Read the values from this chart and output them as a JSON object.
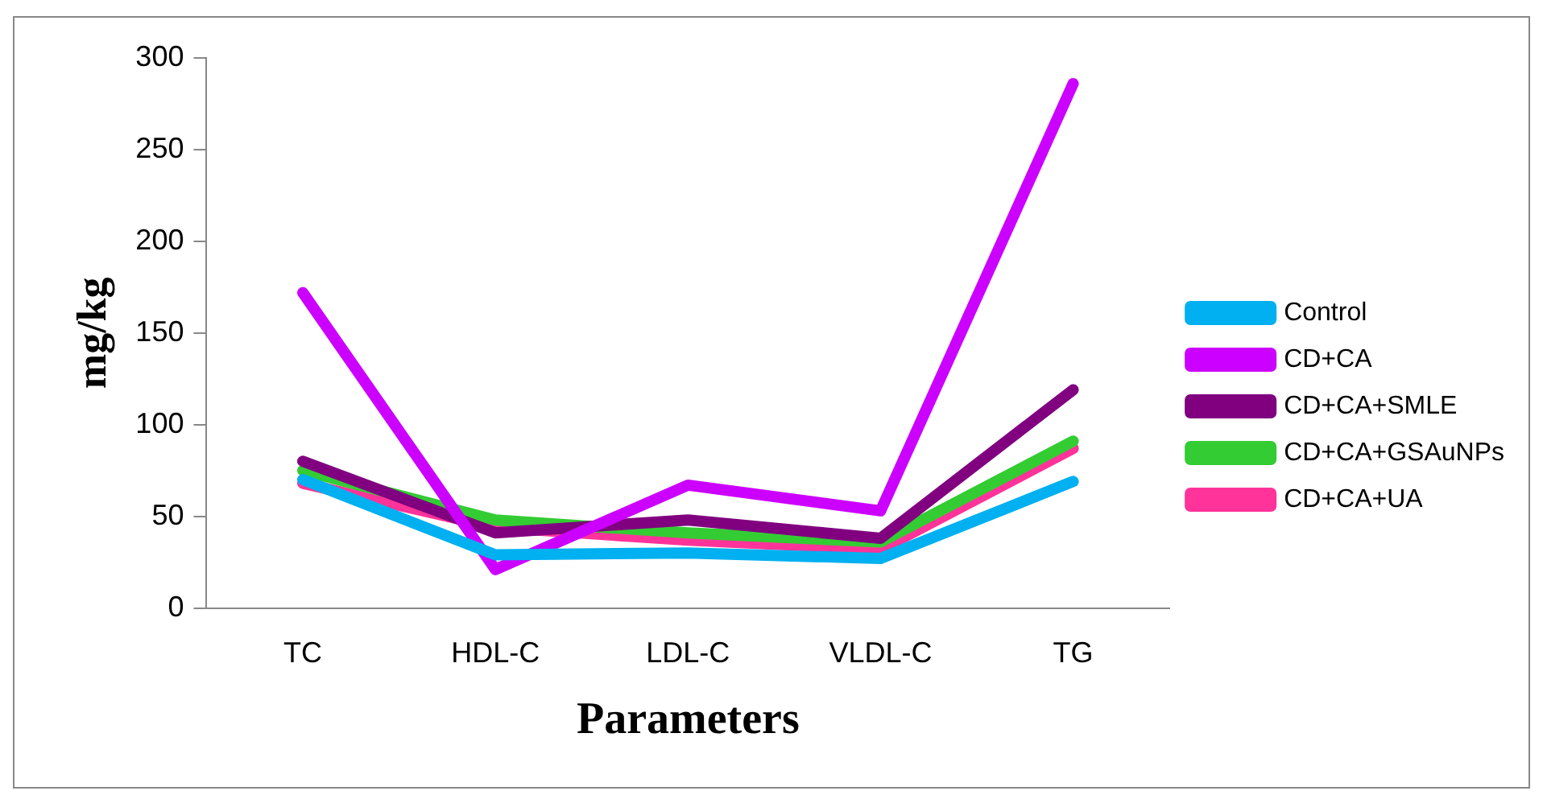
{
  "chart_data": {
    "type": "line",
    "xlabel": "Parameters",
    "ylabel": "mg/kg",
    "categories": [
      "TC",
      "HDL-C",
      "LDL-C",
      "VLDL-C",
      "TG"
    ],
    "ylim": [
      0,
      300
    ],
    "yticks": [
      0,
      50,
      100,
      150,
      200,
      250,
      300
    ],
    "grid": false,
    "legend": "right",
    "marker": "none",
    "line_style": "solid",
    "series": [
      {
        "name": "Control",
        "color": "#00b0f0",
        "values": [
          70,
          29,
          30,
          27,
          69
        ]
      },
      {
        "name": "CD+CA",
        "color": "#cc00ff",
        "values": [
          172,
          21,
          67,
          53,
          286
        ]
      },
      {
        "name": "CD+CA+SMLE",
        "color": "#800080",
        "values": [
          80,
          41,
          48,
          38,
          119
        ]
      },
      {
        "name": "CD+CA+GSAuNPs",
        "color": "#33cc33",
        "values": [
          75,
          48,
          41,
          36,
          91
        ]
      },
      {
        "name": "CD+CA+UA",
        "color": "#ff3399",
        "values": [
          68,
          44,
          37,
          32,
          87
        ]
      }
    ]
  }
}
